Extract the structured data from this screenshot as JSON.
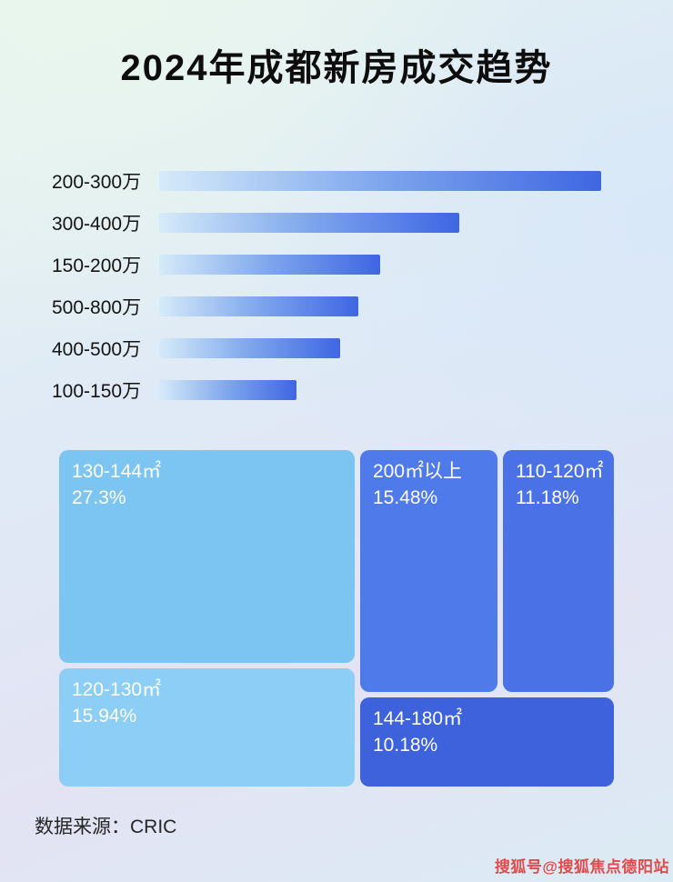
{
  "header": {
    "title": "2024年成都新房成交趋势"
  },
  "footer": {
    "source": "数据来源：CRIC",
    "watermark": "搜狐号@搜狐焦点德阳站"
  },
  "chart_data": [
    {
      "type": "bar",
      "orientation": "horizontal",
      "title": "成交金额段分布（条形图，无数值标注）",
      "categories": [
        "200-300万",
        "300-400万",
        "150-200万",
        "500-800万",
        "400-500万",
        "100-150万"
      ],
      "values_pct_of_max": [
        100,
        68,
        50,
        45,
        41,
        31
      ],
      "xlabel": "",
      "ylabel": "",
      "grid": false,
      "legend": "none",
      "bar_gradient": [
        "#d6ebf9",
        "#7ea6ec",
        "#3f66e2"
      ]
    },
    {
      "type": "heatmap",
      "subtype": "treemap",
      "title": "成交面积段占比",
      "items": [
        {
          "label": "130-144㎡",
          "value": "27.3%",
          "color": "#7cc5f3"
        },
        {
          "label": "120-130㎡",
          "value": "15.94%",
          "color": "#8ccef6"
        },
        {
          "label": "200㎡以上",
          "value": "15.48%",
          "color": "#4f7ae9"
        },
        {
          "label": "110-120㎡",
          "value": "11.18%",
          "color": "#4a72e6"
        },
        {
          "label": "144-180㎡",
          "value": "10.18%",
          "color": "#3d62dc"
        }
      ]
    }
  ]
}
